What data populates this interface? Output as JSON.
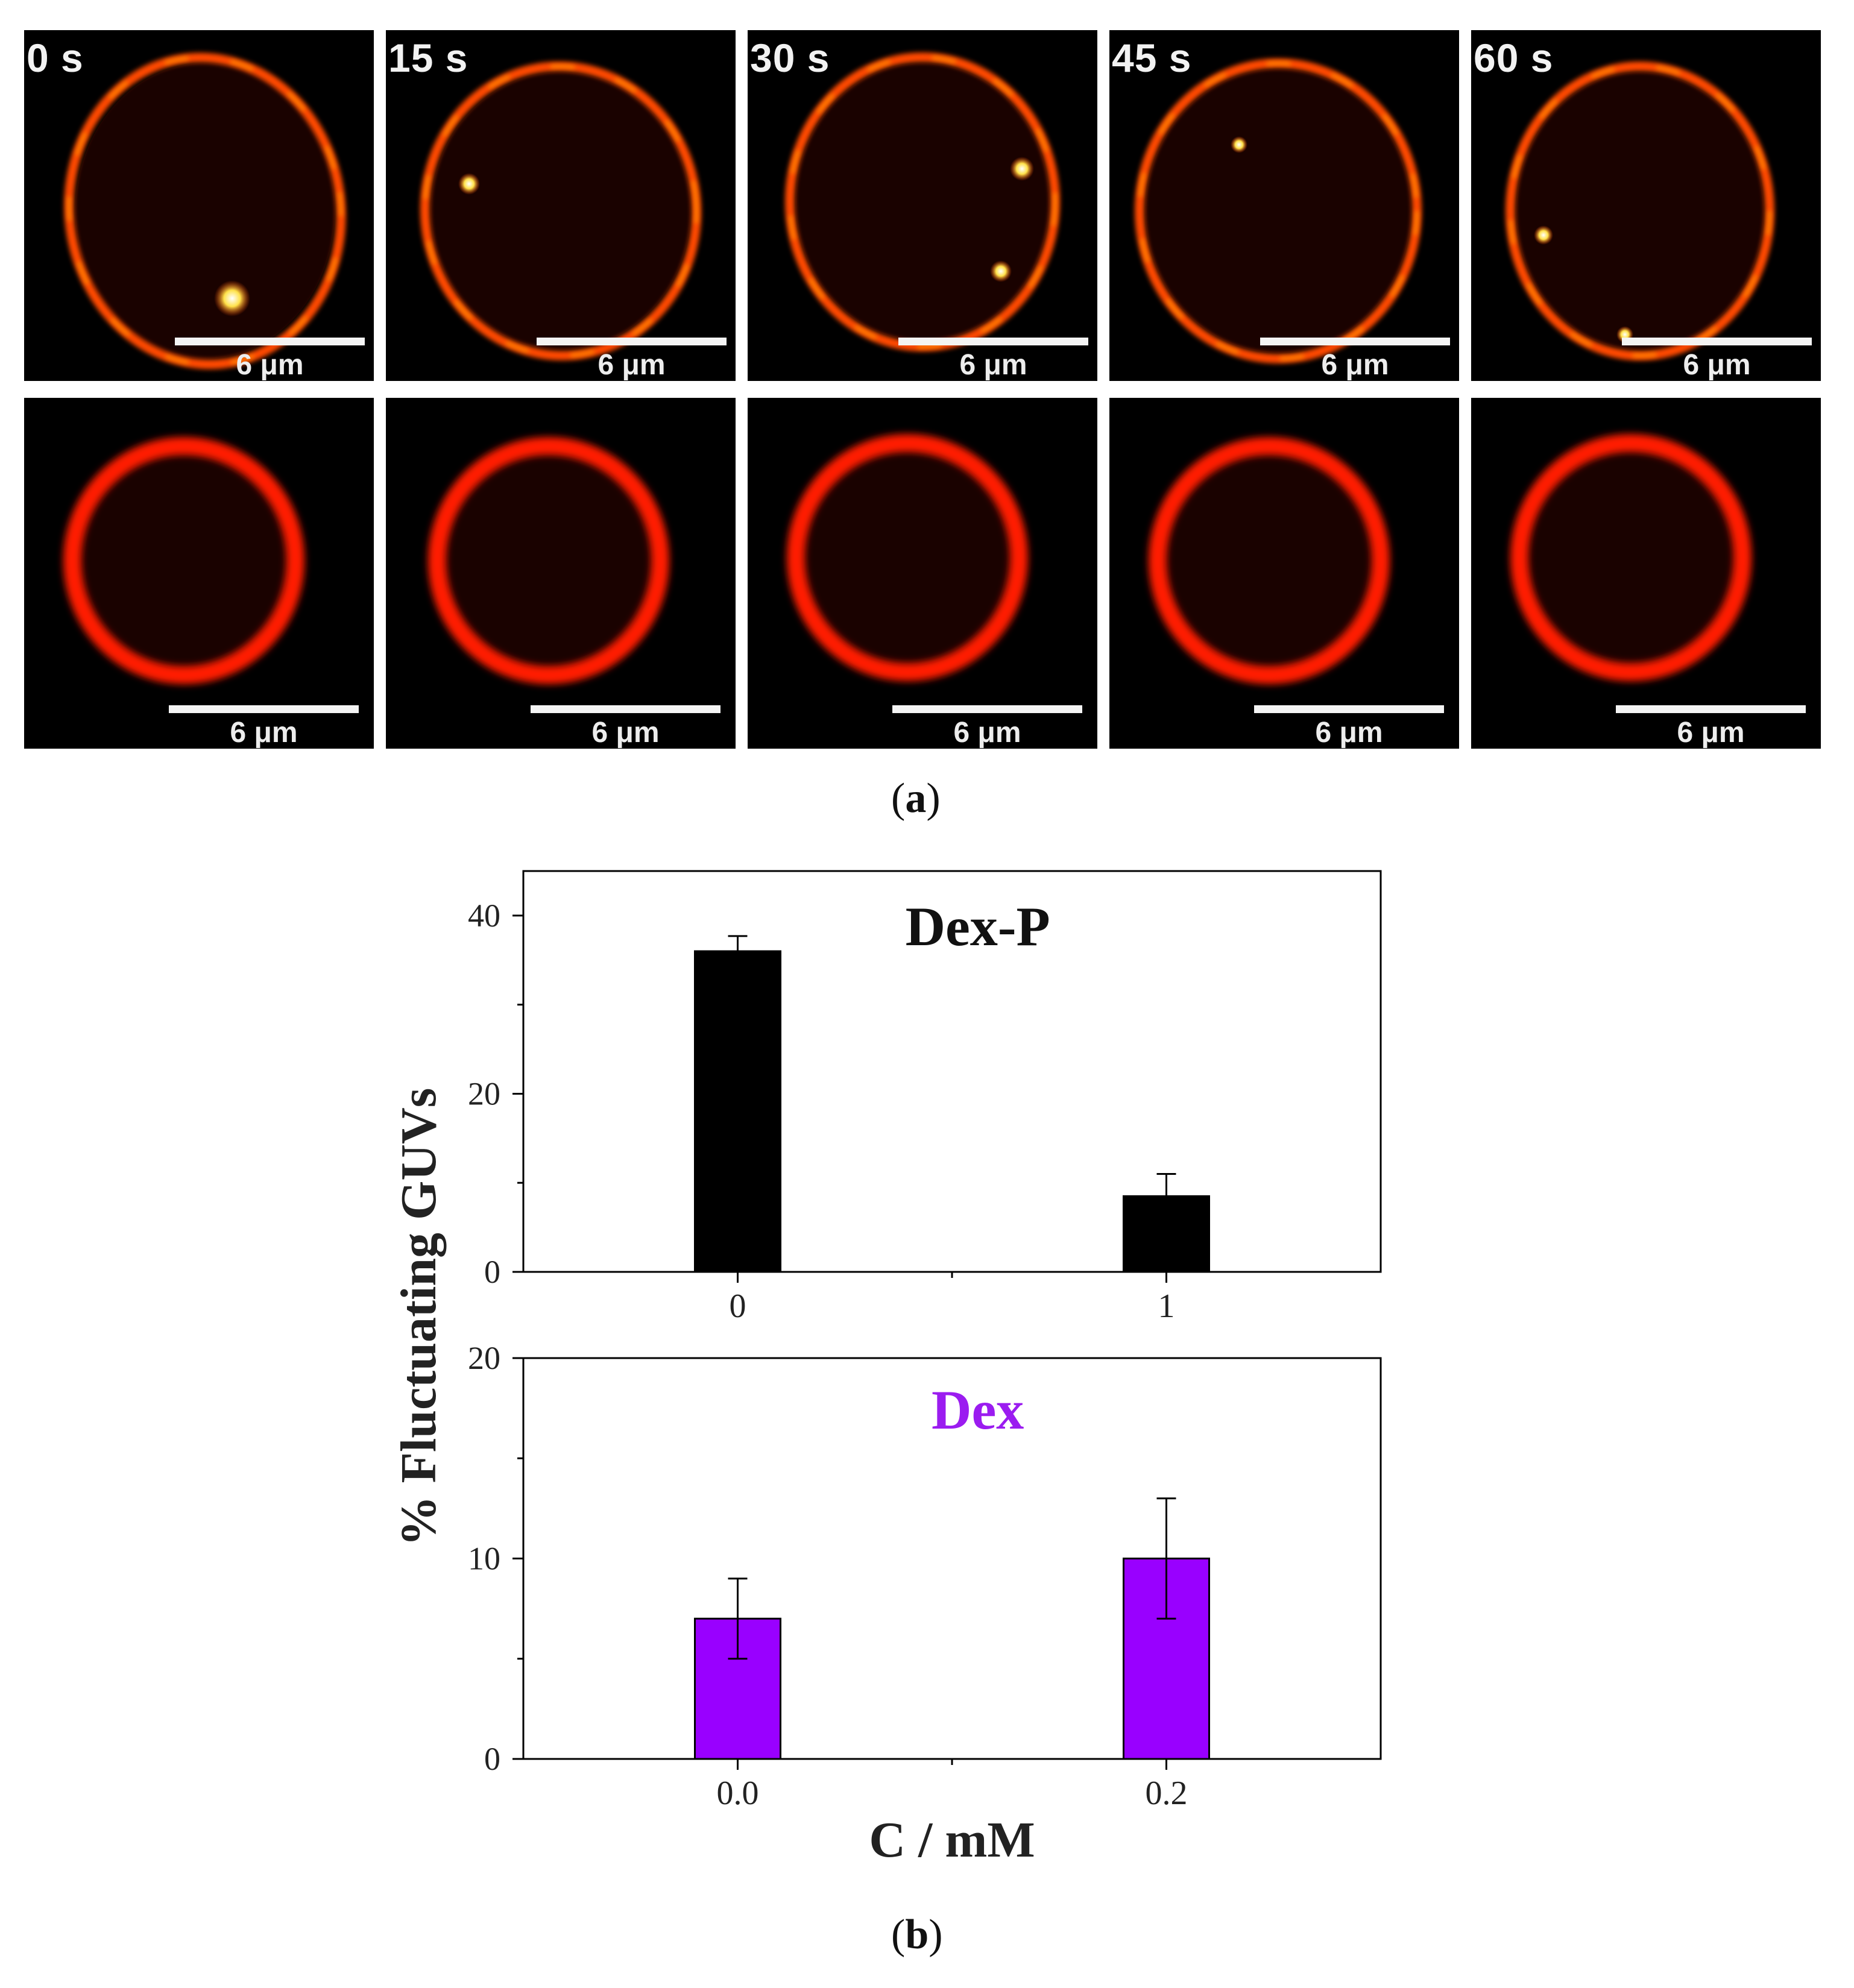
{
  "microscopy": {
    "time_labels": [
      "0 s",
      "15 s",
      "30 s",
      "45 s",
      "60 s"
    ],
    "scale_bar_label": "6 μm",
    "rows": 2,
    "colors": {
      "row1_ring": "#ff4a00",
      "row1_hot": "#ffe24a",
      "row2_ring": "#ff1a00",
      "background": "#000000",
      "divider": "#ffffff"
    }
  },
  "labels": {
    "panel_a": "a",
    "panel_b": "b",
    "ylabel": "% Fluctuating GUVs",
    "xlabel": "C / mM"
  },
  "chart_data": [
    {
      "type": "bar",
      "title": "Dex-P",
      "title_color": "#111111",
      "bar_color": "#000000",
      "categories": [
        "0",
        "1"
      ],
      "values": [
        36,
        8.5
      ],
      "errors": [
        1.7,
        2.5
      ],
      "ylim": [
        0,
        45
      ],
      "yticks": [
        0,
        20,
        40
      ],
      "ylabel": "% Fluctuating GUVs",
      "xlabel": "",
      "grid": false
    },
    {
      "type": "bar",
      "title": "Dex",
      "title_color": "#9b1cf0",
      "bar_color": "#9900ff",
      "categories": [
        "0.0",
        "0.2"
      ],
      "values": [
        7,
        10
      ],
      "errors": [
        2,
        3
      ],
      "ylim": [
        0,
        20
      ],
      "yticks": [
        0,
        10,
        20
      ],
      "ylabel": "% Fluctuating GUVs",
      "xlabel": "C / mM",
      "grid": false
    }
  ]
}
